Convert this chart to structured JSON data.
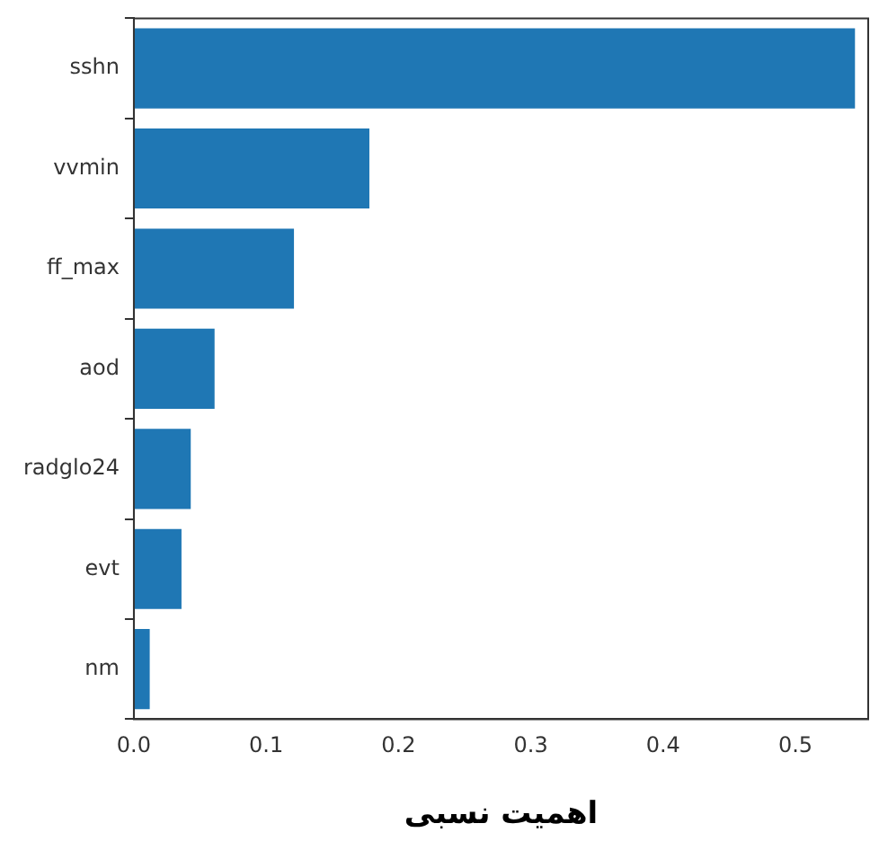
{
  "chart_data": {
    "type": "bar",
    "orientation": "horizontal",
    "xlabel": "اهمیت نسبی",
    "categories": [
      "sshn",
      "vvmin",
      "ff_max",
      "aod",
      "radglo24",
      "evt",
      "nm"
    ],
    "values": [
      0.545,
      0.178,
      0.121,
      0.061,
      0.043,
      0.036,
      0.012
    ],
    "color": "#1f77b4",
    "xlim": [
      0,
      0.555
    ],
    "xticks": [
      {
        "value": 0,
        "label": "0.0"
      },
      0.1,
      0.2,
      0.3,
      0.4,
      0.5
    ],
    "grid": false,
    "legend": false
  }
}
